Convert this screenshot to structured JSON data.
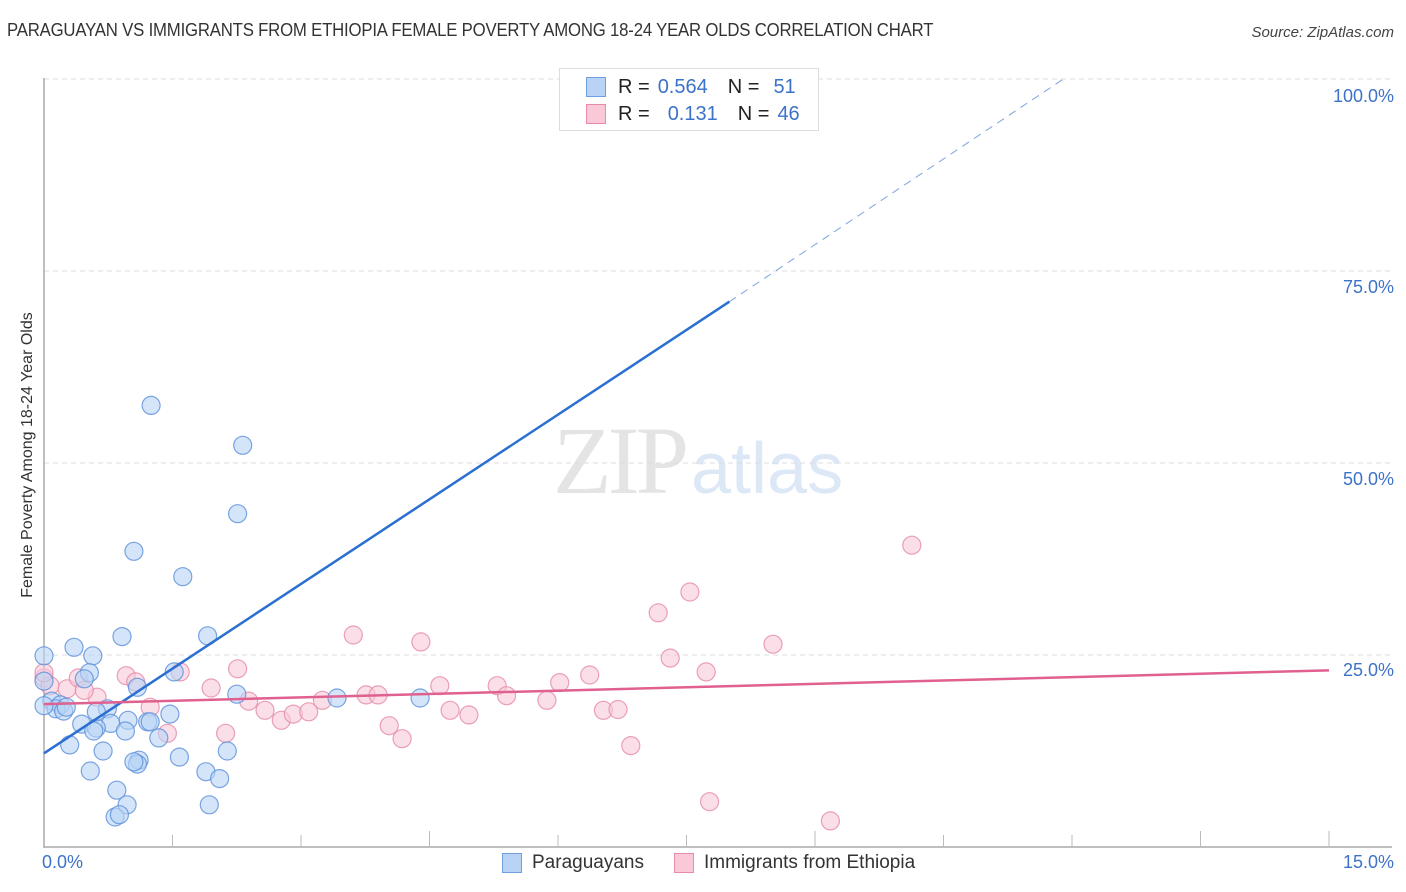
{
  "header": {
    "title": "PARAGUAYAN VS IMMIGRANTS FROM ETHIOPIA FEMALE POVERTY AMONG 18-24 YEAR OLDS CORRELATION CHART",
    "source": "Source: ZipAtlas.com"
  },
  "watermark": {
    "zip": "ZIP",
    "atlas": "atlas"
  },
  "axes": {
    "ylabel": "Female Poverty Among 18-24 Year Olds",
    "yticks": [
      "100.0%",
      "75.0%",
      "50.0%",
      "25.0%"
    ],
    "xticks": [
      "0.0%",
      "15.0%"
    ]
  },
  "legend": {
    "rows": [
      {
        "r_label": "R =",
        "r_value": "0.564",
        "n_label": "N =",
        "n_value": "51",
        "color": "#b8d3f5",
        "border": "#6f9fe0"
      },
      {
        "r_label": "R =",
        "r_value": "0.131",
        "n_label": "N =",
        "n_value": "46",
        "color": "#f9c9d8",
        "border": "#e88aa8"
      }
    ]
  },
  "bottom_legend": {
    "items": [
      {
        "label": "Paraguayans",
        "color": "#b8d3f5",
        "border": "#6f9fe0"
      },
      {
        "label": "Immigrants from Ethiopia",
        "color": "#f9c9d8",
        "border": "#e88aa8"
      }
    ]
  },
  "colors": {
    "blue_point_fill": "#b8d3f5",
    "blue_point_stroke": "#5b8fd9",
    "blue_line": "#2a6fd1",
    "pink_point_fill": "#f9c9d8",
    "pink_point_stroke": "#e58aa8",
    "pink_line": "#e0608f",
    "tick_label": "#3d72c9"
  },
  "chart_data": {
    "type": "scatter",
    "title": "PARAGUAYAN VS IMMIGRANTS FROM ETHIOPIA FEMALE POVERTY AMONG 18-24 YEAR OLDS CORRELATION CHART",
    "xlabel": "",
    "ylabel": "Female Poverty Among 18-24 Year Olds",
    "xlim": [
      0,
      15
    ],
    "ylim": [
      0,
      100
    ],
    "x_ticks": [
      "0.0%",
      "15.0%"
    ],
    "y_ticks": [
      "25.0%",
      "50.0%",
      "75.0%",
      "100.0%"
    ],
    "grid": "horizontal dashed",
    "legend_position": "top-center and bottom",
    "series": [
      {
        "name": "Paraguayans",
        "R": 0.564,
        "N": 51,
        "trend": {
          "x0": 0.0,
          "y0": 12.2,
          "x1": 8.0,
          "y1": 71.0,
          "dashed_extension_to": [
            11.9,
            100.0
          ]
        },
        "points": [
          [
            1.25,
            57.5
          ],
          [
            2.32,
            52.3
          ],
          [
            2.26,
            43.4
          ],
          [
            1.05,
            38.5
          ],
          [
            1.62,
            35.2
          ],
          [
            0.91,
            27.4
          ],
          [
            0.35,
            26.0
          ],
          [
            0.57,
            24.9
          ],
          [
            1.91,
            27.5
          ],
          [
            0.53,
            22.7
          ],
          [
            1.52,
            22.8
          ],
          [
            0.47,
            21.9
          ],
          [
            0.0,
            24.9
          ],
          [
            0.0,
            21.6
          ],
          [
            1.09,
            20.8
          ],
          [
            2.25,
            19.9
          ],
          [
            3.42,
            19.4
          ],
          [
            4.39,
            19.4
          ],
          [
            0.09,
            19.0
          ],
          [
            0.19,
            18.5
          ],
          [
            0.14,
            18.0
          ],
          [
            0.23,
            17.7
          ],
          [
            0.74,
            18.0
          ],
          [
            0.44,
            16.0
          ],
          [
            0.98,
            16.5
          ],
          [
            0.78,
            16.1
          ],
          [
            1.21,
            16.3
          ],
          [
            1.47,
            17.3
          ],
          [
            0.61,
            15.5
          ],
          [
            0.95,
            15.1
          ],
          [
            1.34,
            14.2
          ],
          [
            0.3,
            13.3
          ],
          [
            2.14,
            12.5
          ],
          [
            1.11,
            11.3
          ],
          [
            1.09,
            10.8
          ],
          [
            1.58,
            11.7
          ],
          [
            0.54,
            9.9
          ],
          [
            1.89,
            9.8
          ],
          [
            2.05,
            8.9
          ],
          [
            0.85,
            7.4
          ],
          [
            0.97,
            5.5
          ],
          [
            0.83,
            3.9
          ],
          [
            0.88,
            4.2
          ],
          [
            1.93,
            5.5
          ],
          [
            0.0,
            18.4
          ],
          [
            0.26,
            18.2
          ],
          [
            0.58,
            15.1
          ],
          [
            0.69,
            12.5
          ],
          [
            1.24,
            16.3
          ],
          [
            1.05,
            11.1
          ],
          [
            0.61,
            17.6
          ]
        ]
      },
      {
        "name": "Immigrants from Ethiopia",
        "R": 0.131,
        "N": 46,
        "trend": {
          "x0": 0.0,
          "y0": 18.6,
          "x1": 15.0,
          "y1": 23.0
        },
        "points": [
          [
            0.0,
            22.0
          ],
          [
            0.07,
            21.0
          ],
          [
            0.27,
            20.6
          ],
          [
            0.4,
            22.0
          ],
          [
            0.62,
            19.5
          ],
          [
            0.96,
            22.3
          ],
          [
            1.07,
            21.5
          ],
          [
            1.24,
            18.2
          ],
          [
            1.44,
            14.8
          ],
          [
            1.59,
            22.8
          ],
          [
            1.95,
            20.7
          ],
          [
            2.12,
            14.8
          ],
          [
            2.26,
            23.2
          ],
          [
            2.39,
            19.0
          ],
          [
            2.58,
            17.8
          ],
          [
            2.77,
            16.5
          ],
          [
            2.91,
            17.3
          ],
          [
            3.09,
            17.6
          ],
          [
            3.25,
            19.1
          ],
          [
            3.61,
            27.6
          ],
          [
            3.76,
            19.8
          ],
          [
            3.9,
            19.8
          ],
          [
            4.03,
            15.8
          ],
          [
            4.18,
            14.1
          ],
          [
            4.4,
            26.7
          ],
          [
            4.62,
            21.0
          ],
          [
            4.74,
            17.8
          ],
          [
            4.96,
            17.2
          ],
          [
            5.29,
            21.0
          ],
          [
            5.4,
            19.7
          ],
          [
            5.87,
            19.1
          ],
          [
            6.02,
            21.4
          ],
          [
            6.37,
            22.4
          ],
          [
            6.53,
            17.8
          ],
          [
            6.7,
            17.9
          ],
          [
            6.85,
            13.2
          ],
          [
            7.17,
            30.5
          ],
          [
            7.31,
            24.6
          ],
          [
            7.54,
            33.2
          ],
          [
            7.73,
            22.8
          ],
          [
            7.77,
            5.9
          ],
          [
            8.51,
            26.4
          ],
          [
            9.18,
            3.4
          ],
          [
            10.13,
            39.3
          ],
          [
            0.0,
            22.7
          ],
          [
            0.47,
            20.4
          ]
        ]
      }
    ]
  }
}
